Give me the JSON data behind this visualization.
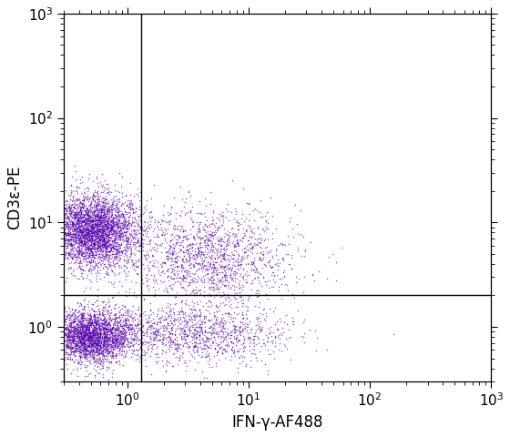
{
  "xlabel": "IFN-γ-AF488",
  "ylabel": "CD3ε-PE",
  "xlim": [
    0.3,
    1000
  ],
  "ylim": [
    0.3,
    1000
  ],
  "gate_x": 1.3,
  "gate_y": 2.0,
  "dot_color": "#5500aa",
  "dot_size": 1.2,
  "dot_alpha": 0.65,
  "background_color": "#ffffff",
  "seed": 42,
  "n_cd3pos_ifnneg": 3500,
  "n_cd3neg_ifnneg": 2800,
  "n_cd3pos_ifnpos": 1600,
  "n_cd3neg_ifnpos": 1200
}
